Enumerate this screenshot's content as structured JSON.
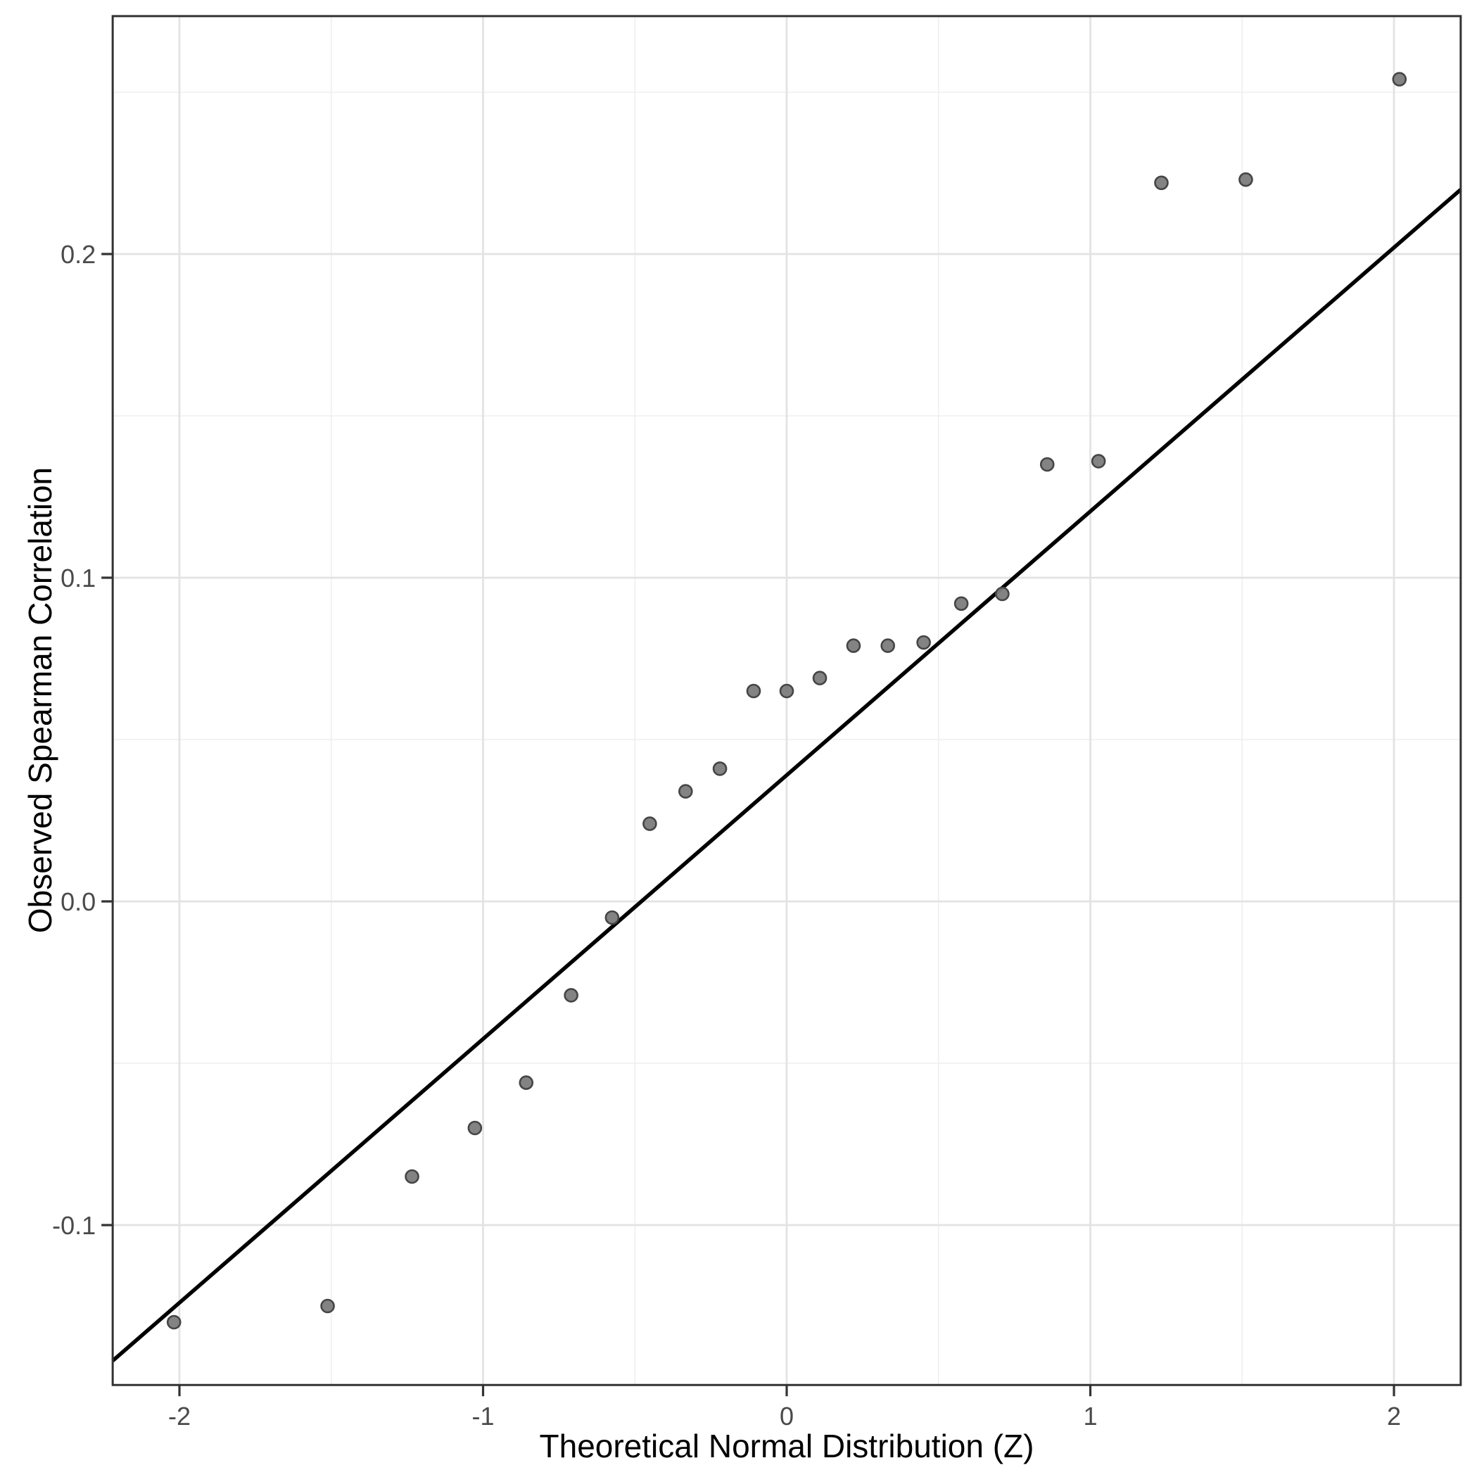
{
  "figure": {
    "background_color": "#ffffff",
    "panel": {
      "border_color": "#333333",
      "background": "#ffffff",
      "grid_major_color": "#e3e3e3",
      "grid_minor_color": "#efefef",
      "tick_color": "#333333",
      "tick_label_color": "#4a4a4a",
      "title_color": "#000000"
    },
    "x_axis": {
      "title": "Theoretical Normal Distribution (Z)",
      "tick_values": [
        -2,
        -1,
        0,
        1,
        2
      ],
      "tick_labels": [
        "-2",
        "-1",
        "0",
        "1",
        "2"
      ],
      "minor_gridlines": [
        -1.5,
        -0.5,
        0.5,
        1.5
      ],
      "range": [
        -2.2198,
        2.2198
      ]
    },
    "y_axis": {
      "title": "Observed Spearman Correlation",
      "tick_values": [
        0.2,
        0.1,
        0.0,
        -0.1
      ],
      "tick_labels": [
        "0.2",
        "0.1",
        "0.0",
        "-0.1"
      ],
      "minor_gridlines": [
        0.25,
        0.15,
        0.05,
        -0.05
      ],
      "range": [
        -0.1494,
        0.2735
      ]
    },
    "point_style": {
      "fill": "#7c7c7c",
      "stroke": "#454545",
      "radius": 9,
      "stroke_width": 2.6
    },
    "line_style": {
      "color": "#000000",
      "width": 5.5
    }
  },
  "chart_data": {
    "type": "scatter",
    "title": "",
    "xlabel": "Theoretical Normal Distribution (Z)",
    "ylabel": "Observed Spearman Correlation",
    "xlim": [
      -2.2198,
      2.2198
    ],
    "ylim": [
      -0.1494,
      0.2735
    ],
    "grid": "on",
    "legend": "none",
    "points": [
      {
        "x": -2.018,
        "y": -0.13
      },
      {
        "x": -1.512,
        "y": -0.125
      },
      {
        "x": -1.234,
        "y": -0.085
      },
      {
        "x": -1.027,
        "y": -0.07
      },
      {
        "x": -0.858,
        "y": -0.056
      },
      {
        "x": -0.71,
        "y": -0.029
      },
      {
        "x": -0.575,
        "y": -0.005
      },
      {
        "x": -0.451,
        "y": 0.024
      },
      {
        "x": -0.333,
        "y": 0.034
      },
      {
        "x": -0.22,
        "y": 0.041
      },
      {
        "x": -0.109,
        "y": 0.065
      },
      {
        "x": 0.0,
        "y": 0.065
      },
      {
        "x": 0.109,
        "y": 0.069
      },
      {
        "x": 0.22,
        "y": 0.079
      },
      {
        "x": 0.333,
        "y": 0.079
      },
      {
        "x": 0.451,
        "y": 0.08
      },
      {
        "x": 0.575,
        "y": 0.092
      },
      {
        "x": 0.71,
        "y": 0.095
      },
      {
        "x": 0.858,
        "y": 0.135
      },
      {
        "x": 1.027,
        "y": 0.136
      },
      {
        "x": 1.234,
        "y": 0.222
      },
      {
        "x": 1.512,
        "y": 0.223
      },
      {
        "x": 2.018,
        "y": 0.254
      }
    ],
    "reference_line": {
      "slope": 0.0815,
      "intercept": 0.039
    }
  }
}
